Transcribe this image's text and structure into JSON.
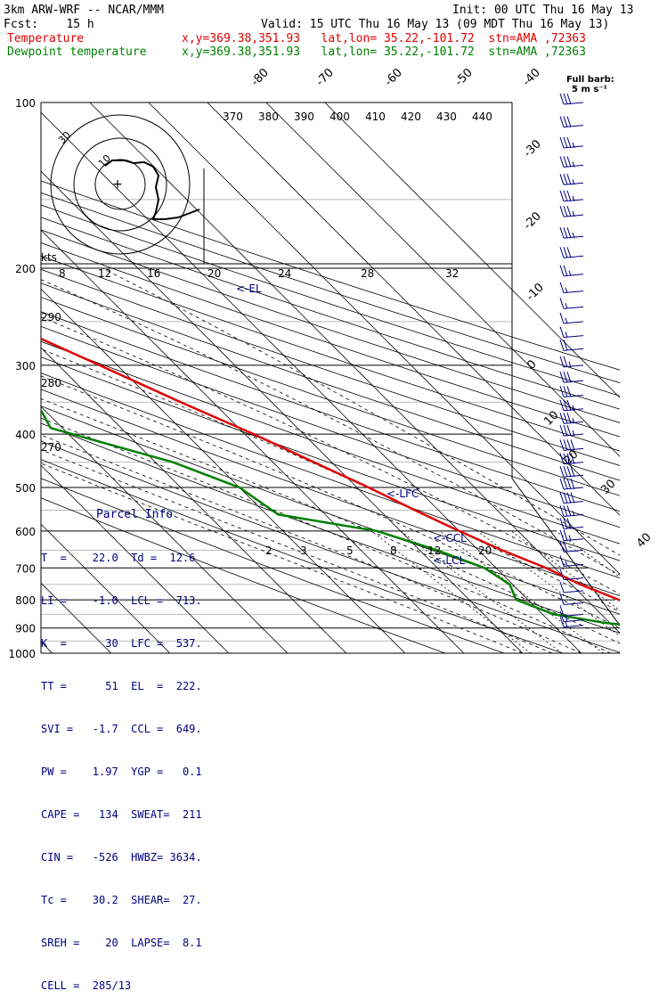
{
  "header": {
    "model": "3km ARW-WRF -- NCAR/MMM",
    "init": "Init: 00 UTC Thu 16 May 13",
    "fcst": "Fcst:    15 h",
    "valid": "Valid: 15 UTC Thu 16 May 13 (09 MDT Thu 16 May 13)",
    "temp_label": "Temperature",
    "temp_info": "x,y=369.38,351.93   lat,lon= 35.22,-101.72  stn=AMA ,72363",
    "dew_label": "Dewpoint temperature",
    "dew_info": "x,y=369.38,351.93   lat,lon= 35.22,-101.72  stn=AMA ,72363"
  },
  "barb_note": {
    "line1": "Full barb:",
    "line2": "5 m s⁻¹"
  },
  "parcel_info": {
    "title": "Parcel Info",
    "rows": [
      "T  =    22.0  Td =  12.6",
      "LI =    -1.0  LCL =  713.",
      "K  =      30  LFC =  537.",
      "TT =      51  EL  =  222.",
      "SVI =   -1.7  CCL =  649.",
      "PW =    1.97  YGP =   0.1",
      "CAPE =   134  SWEAT=  211",
      "CIN =   -526  HWBZ= 3634.",
      "Tc =    30.2  SHEAR=  27.",
      "SREH =    20  LAPSE=  8.1",
      "CELL =  285/13"
    ]
  },
  "colors": {
    "temperature": "#e00000",
    "dewpoint": "#008000",
    "parcel": "#000080",
    "hodograph": "#000000"
  },
  "chart_data": {
    "type": "line",
    "pressure_axis": {
      "levels": [
        100,
        200,
        300,
        400,
        500,
        600,
        700,
        800,
        900,
        1000
      ],
      "labels": [
        "100",
        "200",
        "300",
        "400",
        "500",
        "600",
        "700",
        "800",
        "900",
        "1000"
      ]
    },
    "isotherm_labels": [
      "-80",
      "-70",
      "-60",
      "-50",
      "-40",
      "-30",
      "-20",
      "-10",
      "0",
      "10",
      "20",
      "30",
      "40"
    ],
    "theta_labels": [
      "370",
      "380",
      "390",
      "400",
      "410",
      "420",
      "430",
      "440"
    ],
    "theta_left_labels": [
      "290",
      "280",
      "270"
    ],
    "mixing_ratio_labels": [
      "2",
      "3",
      "5",
      "8",
      "12",
      "20"
    ],
    "speed_labels": [
      "kts",
      "8",
      "12",
      "16",
      "20",
      "24",
      "28",
      "32"
    ],
    "hodo_labels": [
      "30",
      "10"
    ],
    "levels_labels": {
      "el": "<-EL",
      "lfc": "<-LFC",
      "ccl": "<-CCL",
      "lcl": "<-LCL"
    },
    "series": [
      {
        "name": "Temperature",
        "points": [
          [
            900,
            22.0
          ],
          [
            880,
            18.0
          ],
          [
            850,
            17.5
          ],
          [
            800,
            15.5
          ],
          [
            750,
            11.5
          ],
          [
            700,
            8.5
          ],
          [
            650,
            4.0
          ],
          [
            600,
            0.0
          ],
          [
            550,
            -4.0
          ],
          [
            500,
            -8.0
          ],
          [
            450,
            -13.0
          ],
          [
            400,
            -18.5
          ],
          [
            350,
            -25.5
          ],
          [
            300,
            -33.0
          ],
          [
            250,
            -42.0
          ],
          [
            210,
            -52.0
          ],
          [
            200,
            -53.5
          ],
          [
            180,
            -53.0
          ],
          [
            160,
            -52.0
          ],
          [
            140,
            -50.5
          ],
          [
            120,
            -49.0
          ],
          [
            100,
            -47.5
          ]
        ]
      },
      {
        "name": "Dewpoint temperature",
        "points": [
          [
            890,
            12.6
          ],
          [
            880,
            9.0
          ],
          [
            850,
            2.0
          ],
          [
            800,
            -2.0
          ],
          [
            750,
            -0.5
          ],
          [
            700,
            -2.0
          ],
          [
            650,
            -7.0
          ],
          [
            600,
            -14.0
          ],
          [
            560,
            -28.0
          ],
          [
            500,
            -30.0
          ],
          [
            450,
            -37.0
          ],
          [
            390,
            -52.0
          ],
          [
            350,
            -50.0
          ],
          [
            310,
            -51.0
          ],
          [
            280,
            -56.0
          ],
          [
            250,
            -59.0
          ],
          [
            225,
            -62.0
          ],
          [
            200,
            -67.0
          ],
          [
            180,
            -68.0
          ],
          [
            150,
            -68.5
          ],
          [
            120,
            -70.5
          ],
          [
            100,
            -72.0
          ]
        ]
      }
    ],
    "hodograph": [
      [
        0,
        -1
      ],
      [
        -1,
        -2
      ],
      [
        -1,
        1
      ],
      [
        -3,
        6
      ],
      [
        -5,
        3
      ],
      [
        -9,
        -1
      ],
      [
        -12,
        -5
      ],
      [
        -16,
        -9
      ],
      [
        -18,
        -8
      ],
      [
        -20,
        -6
      ]
    ],
    "wind_barbs": [
      {
        "p": 100,
        "speed": 30
      },
      {
        "p": 110,
        "speed": 30
      },
      {
        "p": 120,
        "speed": 35
      },
      {
        "p": 130,
        "speed": 35
      },
      {
        "p": 140,
        "speed": 35
      },
      {
        "p": 150,
        "speed": 35
      },
      {
        "p": 160,
        "speed": 35
      },
      {
        "p": 175,
        "speed": 35
      },
      {
        "p": 190,
        "speed": 30
      },
      {
        "p": 205,
        "speed": 25
      },
      {
        "p": 220,
        "speed": 15
      },
      {
        "p": 235,
        "speed": 15
      },
      {
        "p": 250,
        "speed": 15
      },
      {
        "p": 265,
        "speed": 15
      },
      {
        "p": 280,
        "speed": 20
      },
      {
        "p": 300,
        "speed": 25
      },
      {
        "p": 320,
        "speed": 30
      },
      {
        "p": 340,
        "speed": 30
      },
      {
        "p": 360,
        "speed": 35
      },
      {
        "p": 380,
        "speed": 35
      },
      {
        "p": 400,
        "speed": 35
      },
      {
        "p": 425,
        "speed": 40
      },
      {
        "p": 450,
        "speed": 40
      },
      {
        "p": 475,
        "speed": 40
      },
      {
        "p": 500,
        "speed": 40
      },
      {
        "p": 530,
        "speed": 40
      },
      {
        "p": 560,
        "speed": 35
      },
      {
        "p": 590,
        "speed": 30
      },
      {
        "p": 620,
        "speed": 25
      },
      {
        "p": 650,
        "speed": 20
      },
      {
        "p": 690,
        "speed": 15
      },
      {
        "p": 730,
        "speed": 10
      },
      {
        "p": 770,
        "speed": 10
      },
      {
        "p": 810,
        "speed": 10
      },
      {
        "p": 850,
        "speed": 10
      },
      {
        "p": 870,
        "speed": 15
      },
      {
        "p": 890,
        "speed": 15
      }
    ]
  }
}
